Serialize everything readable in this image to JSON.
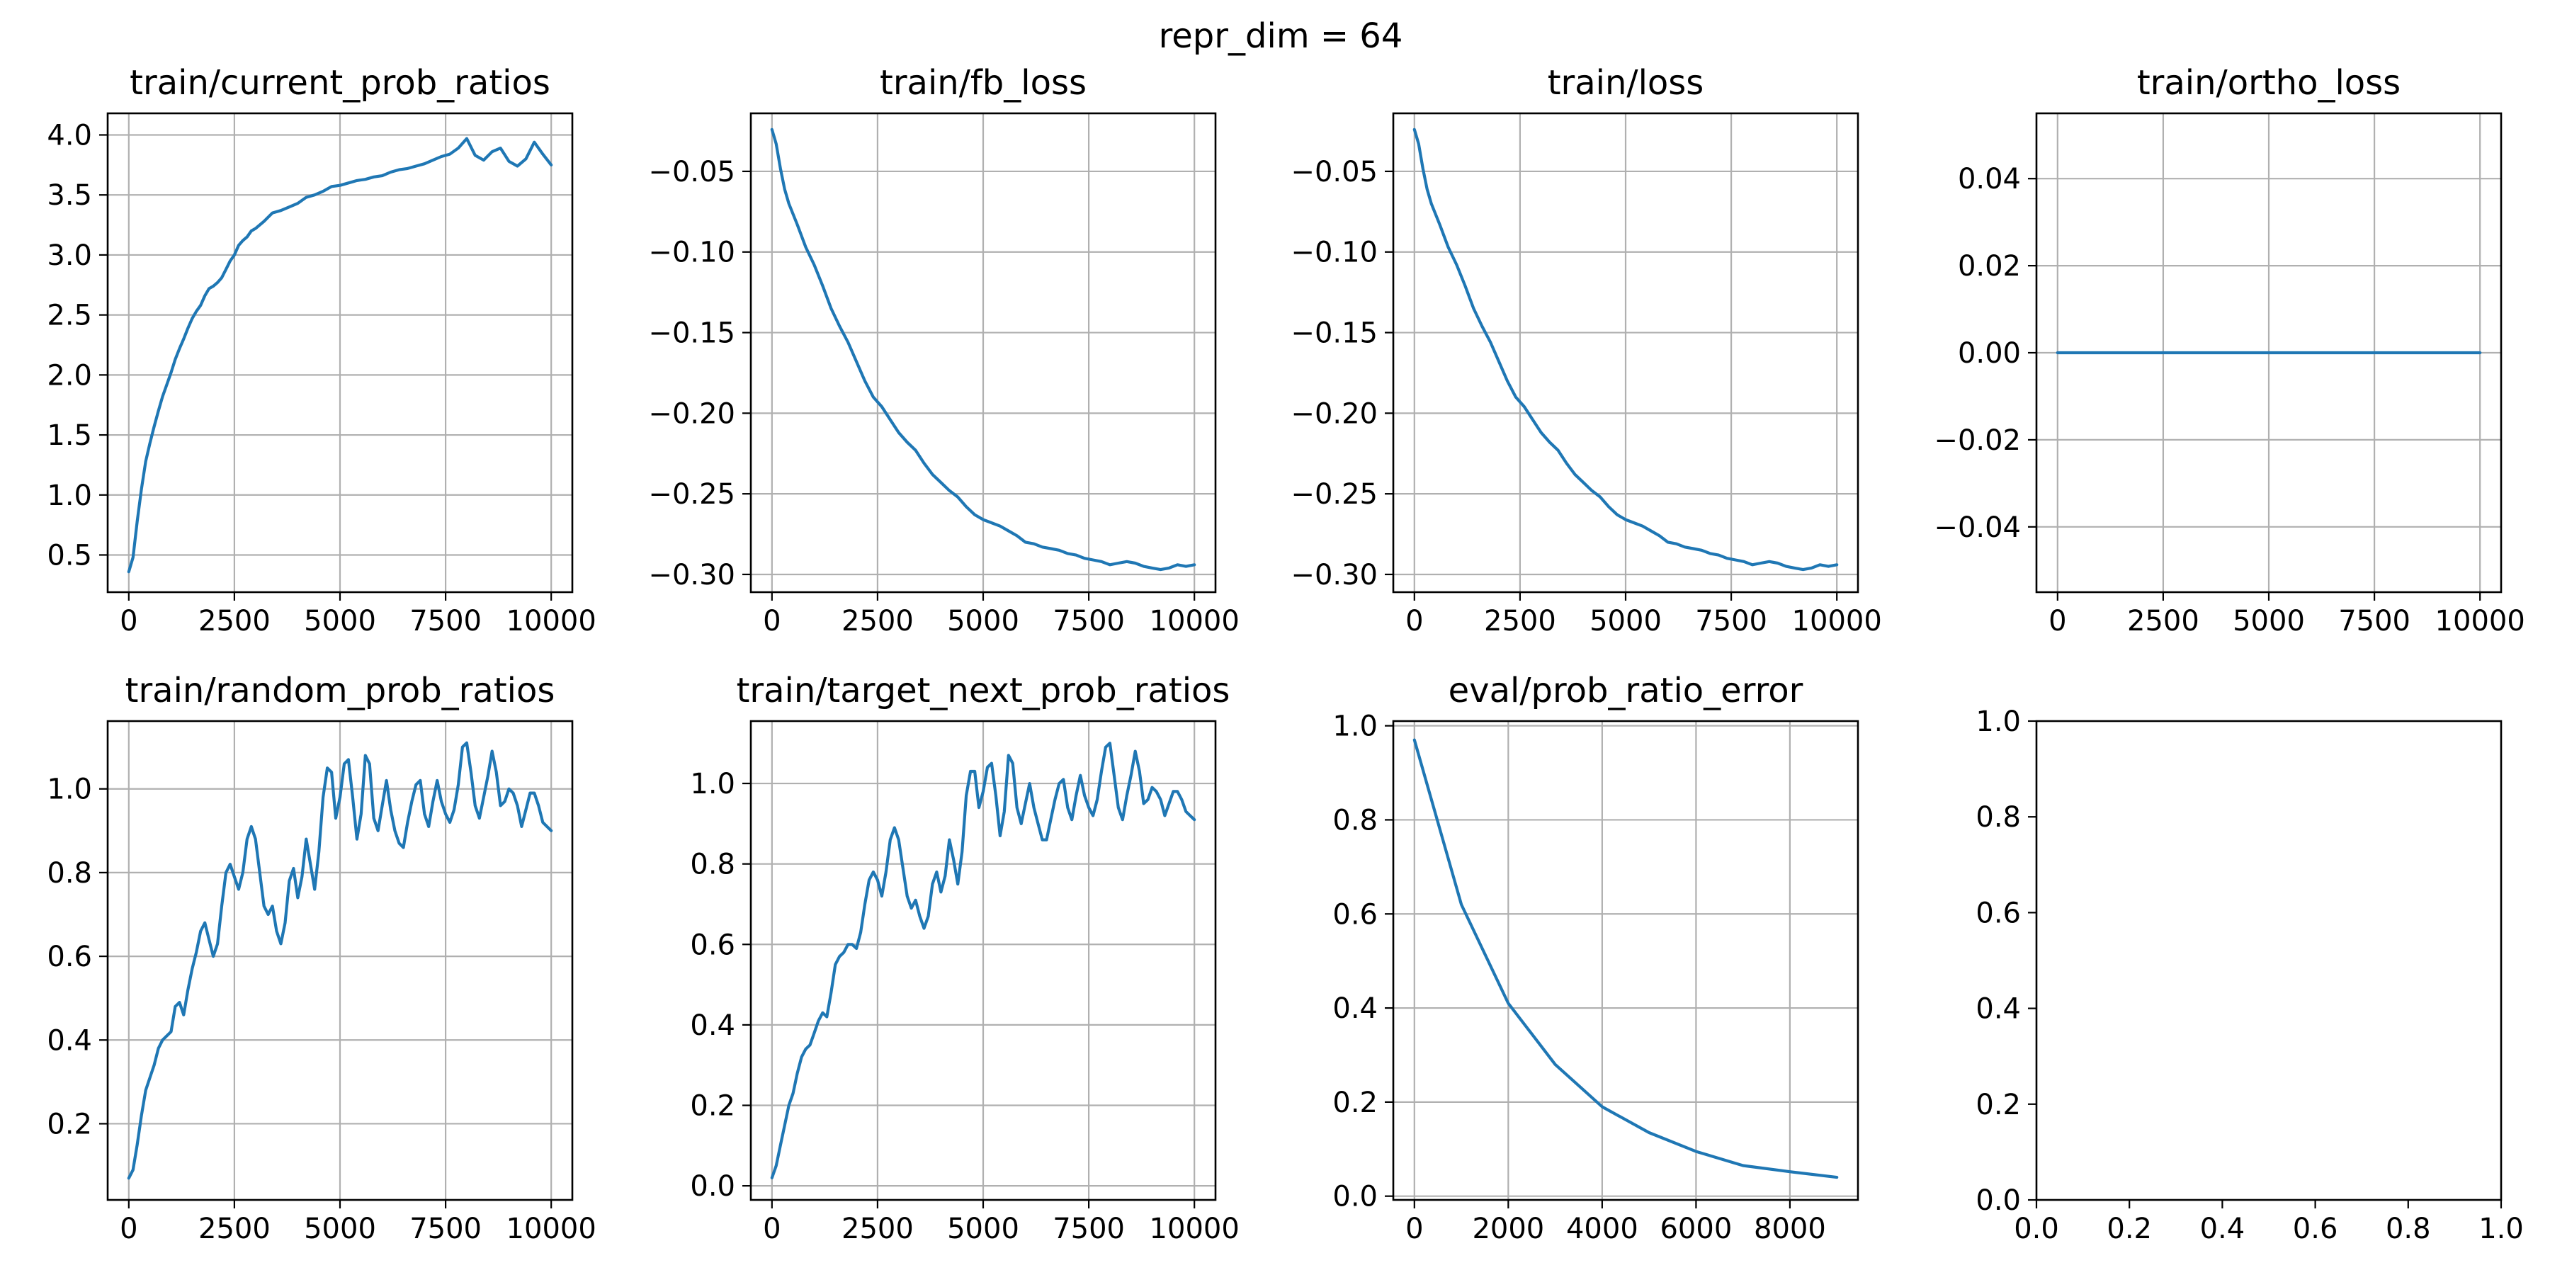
{
  "figure": {
    "suptitle": "repr_dim = 64"
  },
  "colors": {
    "line": "#1f77b4",
    "grid": "#b0b0b0",
    "axes": "#000000"
  },
  "chart_data": [
    {
      "type": "line",
      "title": "train/current_prob_ratios",
      "xlabel": "",
      "ylabel": "",
      "xlim": [
        -500,
        10500
      ],
      "ylim": [
        0.19,
        4.18
      ],
      "xticks": [
        0,
        2500,
        5000,
        7500,
        10000
      ],
      "yticks": [
        0.5,
        1.0,
        1.5,
        2.0,
        2.5,
        3.0,
        3.5,
        4.0
      ],
      "grid": true,
      "series": [
        {
          "name": "",
          "x": [
            0,
            100,
            200,
            300,
            400,
            500,
            600,
            700,
            800,
            900,
            1000,
            1100,
            1200,
            1300,
            1400,
            1500,
            1600,
            1700,
            1800,
            1900,
            2000,
            2100,
            2200,
            2300,
            2400,
            2500,
            2600,
            2700,
            2800,
            2900,
            3000,
            3200,
            3400,
            3600,
            3800,
            4000,
            4200,
            4400,
            4600,
            4800,
            5000,
            5200,
            5400,
            5600,
            5800,
            6000,
            6200,
            6400,
            6600,
            6800,
            7000,
            7200,
            7400,
            7600,
            7800,
            8000,
            8200,
            8400,
            8600,
            8800,
            9000,
            9200,
            9400,
            9600,
            9800,
            10000
          ],
          "y": [
            0.36,
            0.48,
            0.78,
            1.05,
            1.28,
            1.43,
            1.57,
            1.7,
            1.82,
            1.92,
            2.02,
            2.13,
            2.22,
            2.3,
            2.39,
            2.47,
            2.53,
            2.58,
            2.66,
            2.72,
            2.74,
            2.77,
            2.81,
            2.88,
            2.95,
            3.0,
            3.08,
            3.12,
            3.15,
            3.2,
            3.22,
            3.28,
            3.35,
            3.37,
            3.4,
            3.43,
            3.48,
            3.5,
            3.53,
            3.57,
            3.58,
            3.6,
            3.62,
            3.63,
            3.65,
            3.66,
            3.69,
            3.71,
            3.72,
            3.74,
            3.76,
            3.79,
            3.82,
            3.84,
            3.89,
            3.97,
            3.83,
            3.79,
            3.86,
            3.89,
            3.78,
            3.74,
            3.8,
            3.94,
            3.84,
            3.75
          ]
        }
      ]
    },
    {
      "type": "line",
      "title": "train/fb_loss",
      "xlabel": "",
      "ylabel": "",
      "xlim": [
        -500,
        10500
      ],
      "ylim": [
        -0.311,
        -0.014
      ],
      "xticks": [
        0,
        2500,
        5000,
        7500,
        10000
      ],
      "yticks": [
        -0.05,
        -0.1,
        -0.15,
        -0.2,
        -0.25,
        -0.3
      ],
      "ytick_labels": [
        "−0.05",
        "−0.10",
        "−0.15",
        "−0.20",
        "−0.25",
        "−0.30"
      ],
      "grid": true,
      "series": [
        {
          "name": "",
          "x": [
            0,
            100,
            200,
            300,
            400,
            600,
            800,
            1000,
            1200,
            1400,
            1600,
            1800,
            2000,
            2200,
            2400,
            2600,
            2800,
            3000,
            3200,
            3400,
            3600,
            3800,
            4000,
            4200,
            4400,
            4600,
            4800,
            5000,
            5200,
            5400,
            5600,
            5800,
            6000,
            6200,
            6400,
            6600,
            6800,
            7000,
            7200,
            7400,
            7600,
            7800,
            8000,
            8200,
            8400,
            8600,
            8800,
            9000,
            9200,
            9400,
            9600,
            9800,
            10000
          ],
          "y": [
            -0.024,
            -0.033,
            -0.048,
            -0.061,
            -0.07,
            -0.083,
            -0.097,
            -0.108,
            -0.121,
            -0.135,
            -0.146,
            -0.156,
            -0.168,
            -0.18,
            -0.19,
            -0.196,
            -0.204,
            -0.212,
            -0.218,
            -0.223,
            -0.231,
            -0.238,
            -0.243,
            -0.248,
            -0.252,
            -0.258,
            -0.263,
            -0.266,
            -0.268,
            -0.27,
            -0.273,
            -0.276,
            -0.28,
            -0.281,
            -0.283,
            -0.284,
            -0.285,
            -0.287,
            -0.288,
            -0.29,
            -0.291,
            -0.292,
            -0.294,
            -0.293,
            -0.292,
            -0.293,
            -0.295,
            -0.296,
            -0.297,
            -0.296,
            -0.294,
            -0.295,
            -0.294
          ]
        }
      ]
    },
    {
      "type": "line",
      "title": "train/loss",
      "xlabel": "",
      "ylabel": "",
      "xlim": [
        -500,
        10500
      ],
      "ylim": [
        -0.311,
        -0.014
      ],
      "xticks": [
        0,
        2500,
        5000,
        7500,
        10000
      ],
      "yticks": [
        -0.05,
        -0.1,
        -0.15,
        -0.2,
        -0.25,
        -0.3
      ],
      "ytick_labels": [
        "−0.05",
        "−0.10",
        "−0.15",
        "−0.20",
        "−0.25",
        "−0.30"
      ],
      "grid": true,
      "series": [
        {
          "name": "",
          "x": [
            0,
            100,
            200,
            300,
            400,
            600,
            800,
            1000,
            1200,
            1400,
            1600,
            1800,
            2000,
            2200,
            2400,
            2600,
            2800,
            3000,
            3200,
            3400,
            3600,
            3800,
            4000,
            4200,
            4400,
            4600,
            4800,
            5000,
            5200,
            5400,
            5600,
            5800,
            6000,
            6200,
            6400,
            6600,
            6800,
            7000,
            7200,
            7400,
            7600,
            7800,
            8000,
            8200,
            8400,
            8600,
            8800,
            9000,
            9200,
            9400,
            9600,
            9800,
            10000
          ],
          "y": [
            -0.024,
            -0.033,
            -0.048,
            -0.061,
            -0.07,
            -0.083,
            -0.097,
            -0.108,
            -0.121,
            -0.135,
            -0.146,
            -0.156,
            -0.168,
            -0.18,
            -0.19,
            -0.196,
            -0.204,
            -0.212,
            -0.218,
            -0.223,
            -0.231,
            -0.238,
            -0.243,
            -0.248,
            -0.252,
            -0.258,
            -0.263,
            -0.266,
            -0.268,
            -0.27,
            -0.273,
            -0.276,
            -0.28,
            -0.281,
            -0.283,
            -0.284,
            -0.285,
            -0.287,
            -0.288,
            -0.29,
            -0.291,
            -0.292,
            -0.294,
            -0.293,
            -0.292,
            -0.293,
            -0.295,
            -0.296,
            -0.297,
            -0.296,
            -0.294,
            -0.295,
            -0.294
          ]
        }
      ]
    },
    {
      "type": "line",
      "title": "train/ortho_loss",
      "xlabel": "",
      "ylabel": "",
      "xlim": [
        -500,
        10500
      ],
      "ylim": [
        -0.055,
        0.055
      ],
      "xticks": [
        0,
        2500,
        5000,
        7500,
        10000
      ],
      "yticks": [
        0.04,
        0.02,
        0.0,
        -0.02,
        -0.04
      ],
      "ytick_labels": [
        "0.04",
        "0.02",
        "0.00",
        "−0.02",
        "−0.04"
      ],
      "grid": true,
      "series": [
        {
          "name": "",
          "x": [
            0,
            10000
          ],
          "y": [
            0.0,
            0.0
          ]
        }
      ]
    },
    {
      "type": "line",
      "title": "train/random_prob_ratios",
      "xlabel": "",
      "ylabel": "",
      "xlim": [
        -500,
        10500
      ],
      "ylim": [
        0.018,
        1.162
      ],
      "xticks": [
        0,
        2500,
        5000,
        7500,
        10000
      ],
      "yticks": [
        0.2,
        0.4,
        0.6,
        0.8,
        1.0
      ],
      "grid": true,
      "series": [
        {
          "name": "",
          "x": [
            0,
            100,
            200,
            300,
            400,
            500,
            600,
            700,
            800,
            900,
            1000,
            1100,
            1200,
            1300,
            1400,
            1500,
            1600,
            1700,
            1800,
            1900,
            2000,
            2100,
            2200,
            2300,
            2400,
            2500,
            2600,
            2700,
            2800,
            2900,
            3000,
            3100,
            3200,
            3300,
            3400,
            3500,
            3600,
            3700,
            3800,
            3900,
            4000,
            4100,
            4200,
            4300,
            4400,
            4500,
            4600,
            4700,
            4800,
            4900,
            5000,
            5100,
            5200,
            5300,
            5400,
            5500,
            5600,
            5700,
            5800,
            5900,
            6000,
            6100,
            6200,
            6300,
            6400,
            6500,
            6600,
            6700,
            6800,
            6900,
            7000,
            7100,
            7200,
            7300,
            7400,
            7500,
            7600,
            7700,
            7800,
            7900,
            8000,
            8100,
            8200,
            8300,
            8400,
            8500,
            8600,
            8700,
            8800,
            8900,
            9000,
            9100,
            9200,
            9300,
            9400,
            9500,
            9600,
            9700,
            9800,
            9900,
            10000
          ],
          "y": [
            0.07,
            0.09,
            0.15,
            0.22,
            0.28,
            0.31,
            0.34,
            0.38,
            0.4,
            0.41,
            0.42,
            0.48,
            0.49,
            0.46,
            0.52,
            0.57,
            0.61,
            0.66,
            0.68,
            0.64,
            0.6,
            0.63,
            0.72,
            0.8,
            0.82,
            0.79,
            0.76,
            0.8,
            0.88,
            0.91,
            0.88,
            0.8,
            0.72,
            0.7,
            0.72,
            0.66,
            0.63,
            0.68,
            0.78,
            0.81,
            0.74,
            0.79,
            0.88,
            0.82,
            0.76,
            0.85,
            0.98,
            1.05,
            1.04,
            0.93,
            0.98,
            1.06,
            1.07,
            0.98,
            0.88,
            0.94,
            1.08,
            1.06,
            0.93,
            0.9,
            0.96,
            1.02,
            0.95,
            0.9,
            0.87,
            0.86,
            0.92,
            0.97,
            1.01,
            1.02,
            0.94,
            0.91,
            0.97,
            1.02,
            0.97,
            0.94,
            0.92,
            0.95,
            1.01,
            1.1,
            1.11,
            1.04,
            0.96,
            0.93,
            0.98,
            1.03,
            1.09,
            1.04,
            0.96,
            0.97,
            1.0,
            0.99,
            0.96,
            0.91,
            0.95,
            0.99,
            0.99,
            0.96,
            0.92,
            0.91,
            0.9
          ]
        }
      ]
    },
    {
      "type": "line",
      "title": "train/target_next_prob_ratios",
      "xlabel": "",
      "ylabel": "",
      "xlim": [
        -500,
        10500
      ],
      "ylim": [
        -0.035,
        1.155
      ],
      "xticks": [
        0,
        2500,
        5000,
        7500,
        10000
      ],
      "yticks": [
        0.0,
        0.2,
        0.4,
        0.6,
        0.8,
        1.0
      ],
      "grid": true,
      "series": [
        {
          "name": "",
          "x": [
            0,
            100,
            200,
            300,
            400,
            500,
            600,
            700,
            800,
            900,
            1000,
            1100,
            1200,
            1300,
            1400,
            1500,
            1600,
            1700,
            1800,
            1900,
            2000,
            2100,
            2200,
            2300,
            2400,
            2500,
            2600,
            2700,
            2800,
            2900,
            3000,
            3100,
            3200,
            3300,
            3400,
            3500,
            3600,
            3700,
            3800,
            3900,
            4000,
            4100,
            4200,
            4300,
            4400,
            4500,
            4600,
            4700,
            4800,
            4900,
            5000,
            5100,
            5200,
            5300,
            5400,
            5500,
            5600,
            5700,
            5800,
            5900,
            6000,
            6100,
            6200,
            6300,
            6400,
            6500,
            6600,
            6700,
            6800,
            6900,
            7000,
            7100,
            7200,
            7300,
            7400,
            7500,
            7600,
            7700,
            7800,
            7900,
            8000,
            8100,
            8200,
            8300,
            8400,
            8500,
            8600,
            8700,
            8800,
            8900,
            9000,
            9100,
            9200,
            9300,
            9400,
            9500,
            9600,
            9700,
            9800,
            9900,
            10000
          ],
          "y": [
            0.02,
            0.05,
            0.1,
            0.15,
            0.2,
            0.23,
            0.28,
            0.32,
            0.34,
            0.35,
            0.38,
            0.41,
            0.43,
            0.42,
            0.48,
            0.55,
            0.57,
            0.58,
            0.6,
            0.6,
            0.59,
            0.63,
            0.7,
            0.76,
            0.78,
            0.76,
            0.72,
            0.78,
            0.86,
            0.89,
            0.86,
            0.79,
            0.72,
            0.69,
            0.71,
            0.67,
            0.64,
            0.67,
            0.75,
            0.78,
            0.73,
            0.77,
            0.86,
            0.81,
            0.75,
            0.83,
            0.97,
            1.03,
            1.03,
            0.94,
            0.98,
            1.04,
            1.05,
            0.97,
            0.87,
            0.93,
            1.07,
            1.05,
            0.94,
            0.9,
            0.95,
            1.0,
            0.94,
            0.9,
            0.86,
            0.86,
            0.91,
            0.96,
            1.0,
            1.01,
            0.94,
            0.91,
            0.97,
            1.02,
            0.97,
            0.94,
            0.92,
            0.96,
            1.03,
            1.09,
            1.1,
            1.02,
            0.94,
            0.91,
            0.97,
            1.02,
            1.08,
            1.03,
            0.95,
            0.96,
            0.99,
            0.98,
            0.96,
            0.92,
            0.95,
            0.98,
            0.98,
            0.96,
            0.93,
            0.92,
            0.91
          ]
        }
      ]
    },
    {
      "type": "line",
      "title": "eval/prob_ratio_error",
      "xlabel": "",
      "ylabel": "",
      "xlim": [
        -450,
        9450
      ],
      "ylim": [
        -0.008,
        1.01
      ],
      "xticks": [
        0,
        2000,
        4000,
        6000,
        8000
      ],
      "yticks": [
        0.0,
        0.2,
        0.4,
        0.6,
        0.8,
        1.0
      ],
      "grid": true,
      "series": [
        {
          "name": "",
          "x": [
            0,
            1000,
            2000,
            3000,
            4000,
            5000,
            6000,
            7000,
            8000,
            9000
          ],
          "y": [
            0.97,
            0.62,
            0.41,
            0.28,
            0.19,
            0.135,
            0.095,
            0.065,
            0.052,
            0.04
          ]
        }
      ]
    },
    {
      "type": "line",
      "title": "",
      "xlabel": "",
      "ylabel": "",
      "xlim": [
        0,
        1
      ],
      "ylim": [
        0,
        1
      ],
      "xticks": [
        0.0,
        0.2,
        0.4,
        0.6,
        0.8,
        1.0
      ],
      "yticks": [
        0.0,
        0.2,
        0.4,
        0.6,
        0.8,
        1.0
      ],
      "grid": false,
      "series": []
    }
  ]
}
